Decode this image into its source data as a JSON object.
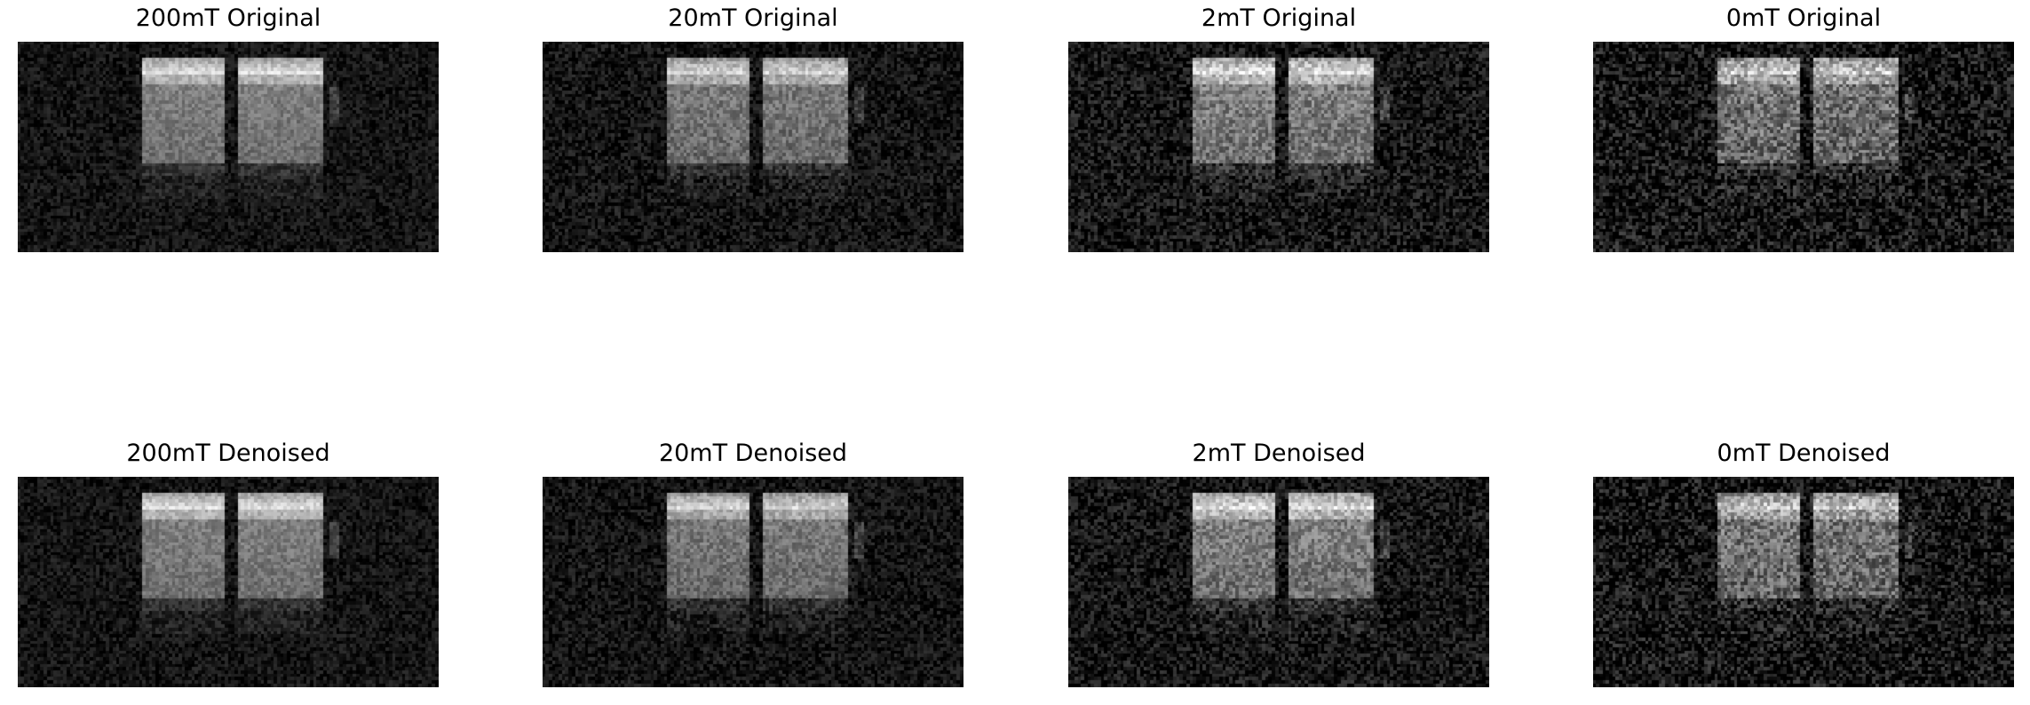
{
  "figure": {
    "rows": [
      {
        "panels": [
          {
            "title": "200mT Original",
            "noise": 0.1,
            "brightness": 1.0
          },
          {
            "title": "20mT Original",
            "noise": 0.13,
            "brightness": 0.95
          },
          {
            "title": "2mT Original",
            "noise": 0.17,
            "brightness": 1.0
          },
          {
            "title": "0mT Original",
            "noise": 0.22,
            "brightness": 0.9
          }
        ]
      },
      {
        "panels": [
          {
            "title": "200mT Denoised",
            "noise": 0.1,
            "brightness": 1.0
          },
          {
            "title": "20mT Denoised",
            "noise": 0.12,
            "brightness": 0.95
          },
          {
            "title": "2mT Denoised",
            "noise": 0.16,
            "brightness": 1.0
          },
          {
            "title": "0mT Denoised",
            "noise": 0.21,
            "brightness": 0.9
          }
        ]
      }
    ],
    "colormap": "gray"
  }
}
